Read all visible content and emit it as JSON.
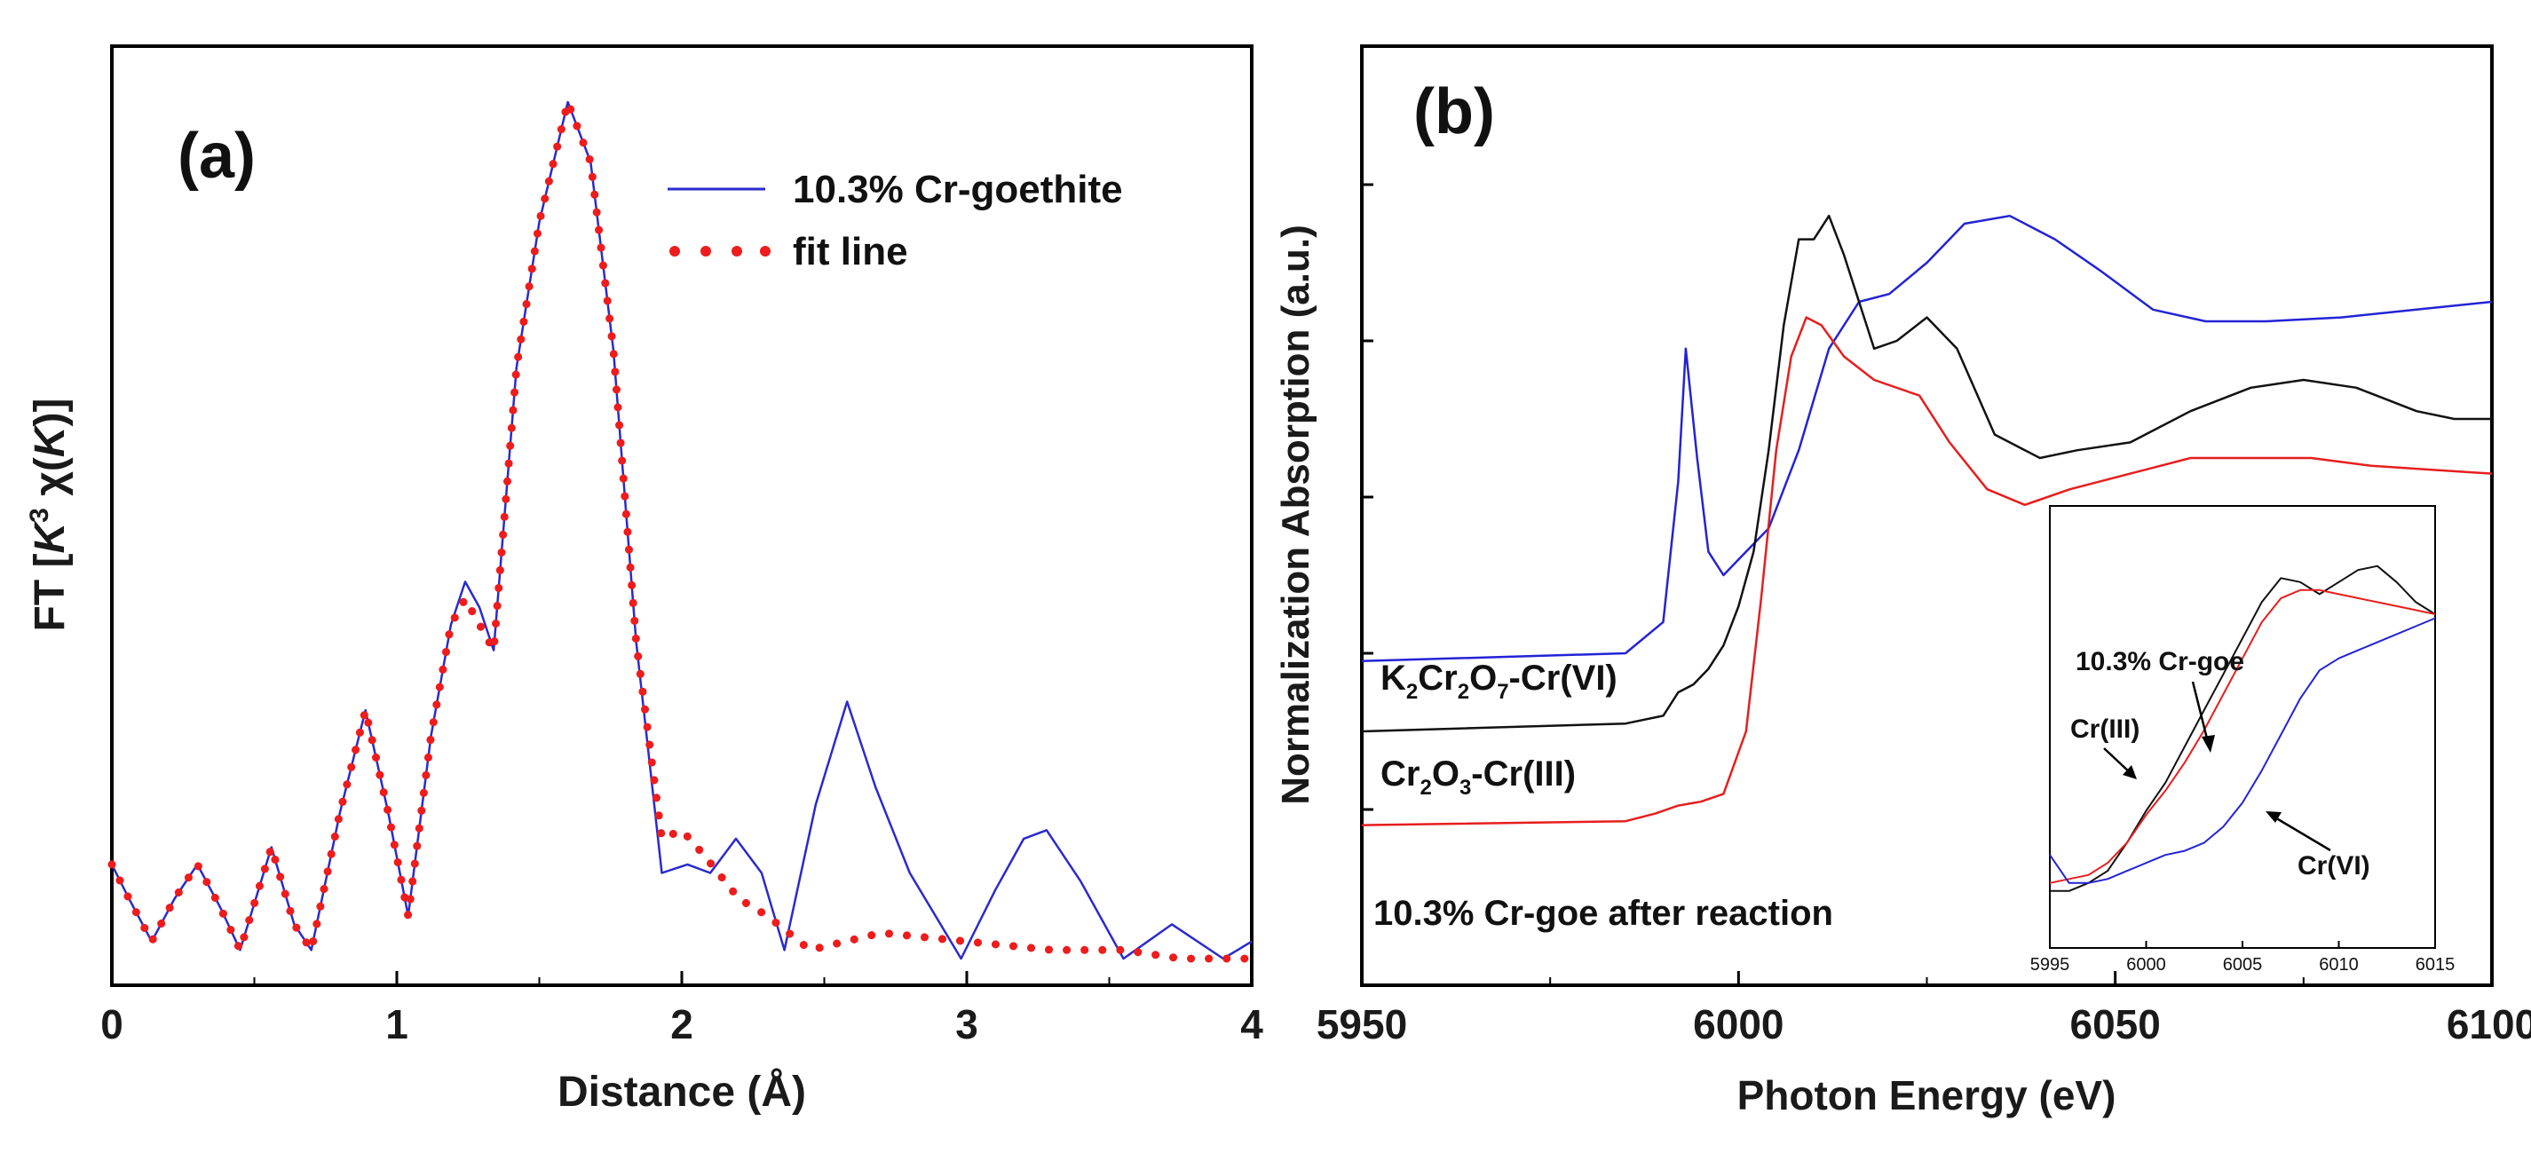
{
  "chart_data": [
    {
      "panel": "(a)",
      "type": "line",
      "xlabel": "Distance (Å)",
      "ylabel": "FT [K3 χ(K)]",
      "ylabel_parts": {
        "prefix": "FT [",
        "K": "K",
        "sup": "3",
        "chi": " χ(",
        "K2": "K",
        "suffix": ")]"
      },
      "xlim": [
        0,
        4
      ],
      "ylim": [
        0,
        1.02
      ],
      "xticks": [
        "0",
        "1",
        "2",
        "3",
        "4"
      ],
      "legend": [
        "10.3% Cr-goethite",
        "fit line"
      ],
      "legend_position": "top-right",
      "colors": {
        "data": "#2a2acf",
        "fit": "#ee1c1c"
      },
      "series": [
        {
          "name": "10.3% Cr-goethite",
          "style": "solid",
          "x": [
            0,
            0.06,
            0.14,
            0.22,
            0.3,
            0.38,
            0.45,
            0.56,
            0.64,
            0.7,
            0.8,
            0.89,
            0.97,
            1.04,
            1.12,
            1.19,
            1.24,
            1.29,
            1.34,
            1.42,
            1.5,
            1.6,
            1.68,
            1.76,
            1.84,
            1.93,
            2.02,
            2.1,
            2.19,
            2.28,
            2.36,
            2.47,
            2.58,
            2.68,
            2.8,
            2.98,
            3.1,
            3.2,
            3.28,
            3.4,
            3.55,
            3.72,
            3.9,
            4
          ],
          "y": [
            0.11,
            0.07,
            0.02,
            0.07,
            0.11,
            0.06,
            0.01,
            0.13,
            0.04,
            0.01,
            0.17,
            0.29,
            0.17,
            0.05,
            0.26,
            0.39,
            0.44,
            0.41,
            0.36,
            0.69,
            0.86,
            1.0,
            0.93,
            0.71,
            0.37,
            0.1,
            0.11,
            0.1,
            0.14,
            0.1,
            0.01,
            0.18,
            0.3,
            0.2,
            0.1,
            0.0,
            0.08,
            0.14,
            0.15,
            0.09,
            0.0,
            0.04,
            0.0,
            0.02
          ]
        },
        {
          "name": "fit line",
          "style": "dotted",
          "x": [
            0,
            0.06,
            0.14,
            0.22,
            0.3,
            0.38,
            0.45,
            0.56,
            0.64,
            0.7,
            0.8,
            0.89,
            0.97,
            1.04,
            1.12,
            1.19,
            1.24,
            1.29,
            1.34,
            1.42,
            1.5,
            1.6,
            1.68,
            1.76,
            1.84,
            1.93,
            2.0,
            2.08,
            2.2,
            2.3,
            2.45,
            2.7,
            3.0,
            3.3,
            3.55,
            3.75,
            4
          ],
          "y": [
            0.11,
            0.07,
            0.02,
            0.07,
            0.11,
            0.06,
            0.01,
            0.13,
            0.04,
            0.01,
            0.17,
            0.29,
            0.17,
            0.05,
            0.26,
            0.39,
            0.42,
            0.39,
            0.36,
            0.69,
            0.86,
            1.0,
            0.93,
            0.71,
            0.37,
            0.14,
            0.15,
            0.12,
            0.07,
            0.05,
            0.01,
            0.03,
            0.02,
            0.01,
            0.01,
            0.0,
            0.0
          ]
        }
      ]
    },
    {
      "panel": "(b)",
      "type": "line",
      "xlabel": "Photon Energy (eV)",
      "ylabel": "Normalization Absorption (a.u.)",
      "xlim": [
        5950,
        6100
      ],
      "ylim": [
        0,
        1
      ],
      "xticks": [
        "5950",
        "6000",
        "6050",
        "6100"
      ],
      "curve_labels": [
        {
          "base": "K",
          "sub1": "2",
          "mid1": "Cr",
          "sub2": "2",
          "mid2": "O",
          "sub3": "7",
          "tail": "-Cr(VI)"
        },
        {
          "base": "Cr",
          "sub1": "2",
          "mid1": "O",
          "sub2": "3",
          "tail": "-Cr(III)"
        },
        {
          "text": "10.3% Cr-goe after reaction"
        }
      ],
      "series": [
        {
          "name": "K2Cr2O7-Cr(VI)",
          "color": "#2323d6",
          "x": [
            5950,
            5985,
            5990,
            5992,
            5993,
            5994.5,
            5996,
            5998,
            6000,
            6004,
            6008,
            6012,
            6016,
            6020,
            6025,
            6030,
            6036,
            6042,
            6048,
            6055,
            6062,
            6070,
            6080,
            6090,
            6100
          ],
          "y": [
            0.29,
            0.3,
            0.34,
            0.52,
            0.69,
            0.55,
            0.43,
            0.4,
            0.42,
            0.46,
            0.56,
            0.69,
            0.75,
            0.76,
            0.8,
            0.85,
            0.86,
            0.83,
            0.79,
            0.74,
            0.725,
            0.725,
            0.73,
            0.74,
            0.75
          ]
        },
        {
          "name": "Cr2O3-Cr(III)",
          "color": "#111111",
          "x": [
            5950,
            5985,
            5990,
            5992,
            5994,
            5996,
            5998,
            6000,
            6002,
            6004,
            6006,
            6008,
            6010,
            6012,
            6014,
            6018,
            6021,
            6025,
            6029,
            6034,
            6040,
            6045,
            6052,
            6060,
            6068,
            6075,
            6082,
            6090,
            6095,
            6100
          ],
          "y": [
            0.2,
            0.21,
            0.22,
            0.25,
            0.26,
            0.28,
            0.31,
            0.36,
            0.43,
            0.56,
            0.72,
            0.83,
            0.83,
            0.86,
            0.81,
            0.69,
            0.7,
            0.73,
            0.69,
            0.58,
            0.55,
            0.56,
            0.57,
            0.61,
            0.64,
            0.65,
            0.64,
            0.61,
            0.6,
            0.6
          ]
        },
        {
          "name": "10.3% Cr-goe after reaction",
          "color": "#e61e1e",
          "x": [
            5950,
            5985,
            5989,
            5992,
            5995,
            5998,
            6001,
            6003,
            6005,
            6007,
            6009,
            6011,
            6014,
            6018,
            6024,
            6028,
            6033,
            6038,
            6044,
            6052,
            6060,
            6068,
            6076,
            6084,
            6092,
            6100
          ],
          "y": [
            0.08,
            0.085,
            0.095,
            0.105,
            0.11,
            0.12,
            0.2,
            0.37,
            0.56,
            0.68,
            0.73,
            0.72,
            0.68,
            0.65,
            0.63,
            0.57,
            0.51,
            0.49,
            0.51,
            0.53,
            0.55,
            0.55,
            0.55,
            0.54,
            0.535,
            0.53
          ]
        }
      ]
    },
    {
      "panel": "inset",
      "type": "line",
      "xlim": [
        5995,
        6015
      ],
      "xticks": [
        "5995",
        "6000",
        "6005",
        "6010",
        "6015"
      ],
      "annotations": [
        "10.3% Cr-goe",
        "Cr(III)",
        "Cr(VI)"
      ],
      "series": [
        {
          "name": "Cr(III)",
          "color": "#111111",
          "x": [
            5995,
            5996,
            5997,
            5998,
            5999,
            6000,
            6001,
            6002,
            6003,
            6004,
            6005,
            6006,
            6007,
            6008,
            6009,
            6010,
            6011,
            6012,
            6013,
            6014,
            6015
          ],
          "y": [
            0.08,
            0.08,
            0.1,
            0.13,
            0.2,
            0.28,
            0.35,
            0.44,
            0.53,
            0.62,
            0.71,
            0.8,
            0.86,
            0.85,
            0.82,
            0.85,
            0.88,
            0.89,
            0.85,
            0.8,
            0.77
          ]
        },
        {
          "name": "10.3% Cr-goe",
          "color": "#e61e1e",
          "x": [
            5995,
            5996,
            5997,
            5998,
            5999,
            6000,
            6001,
            6002,
            6003,
            6004,
            6005,
            6006,
            6007,
            6008,
            6009,
            6010,
            6011,
            6012,
            6013,
            6014,
            6015
          ],
          "y": [
            0.1,
            0.11,
            0.12,
            0.15,
            0.2,
            0.27,
            0.33,
            0.4,
            0.48,
            0.57,
            0.66,
            0.75,
            0.81,
            0.83,
            0.83,
            0.82,
            0.81,
            0.8,
            0.79,
            0.78,
            0.77
          ]
        },
        {
          "name": "Cr(VI)",
          "color": "#2323d6",
          "x": [
            5995,
            5996,
            5997,
            5998,
            5999,
            6000,
            6001,
            6002,
            6003,
            6004,
            6005,
            6006,
            6007,
            6008,
            6009,
            6010,
            6011,
            6012,
            6013,
            6014,
            6015
          ],
          "y": [
            0.17,
            0.1,
            0.1,
            0.11,
            0.13,
            0.15,
            0.17,
            0.18,
            0.2,
            0.24,
            0.3,
            0.38,
            0.47,
            0.56,
            0.63,
            0.66,
            0.68,
            0.7,
            0.72,
            0.74,
            0.76
          ]
        }
      ]
    }
  ]
}
